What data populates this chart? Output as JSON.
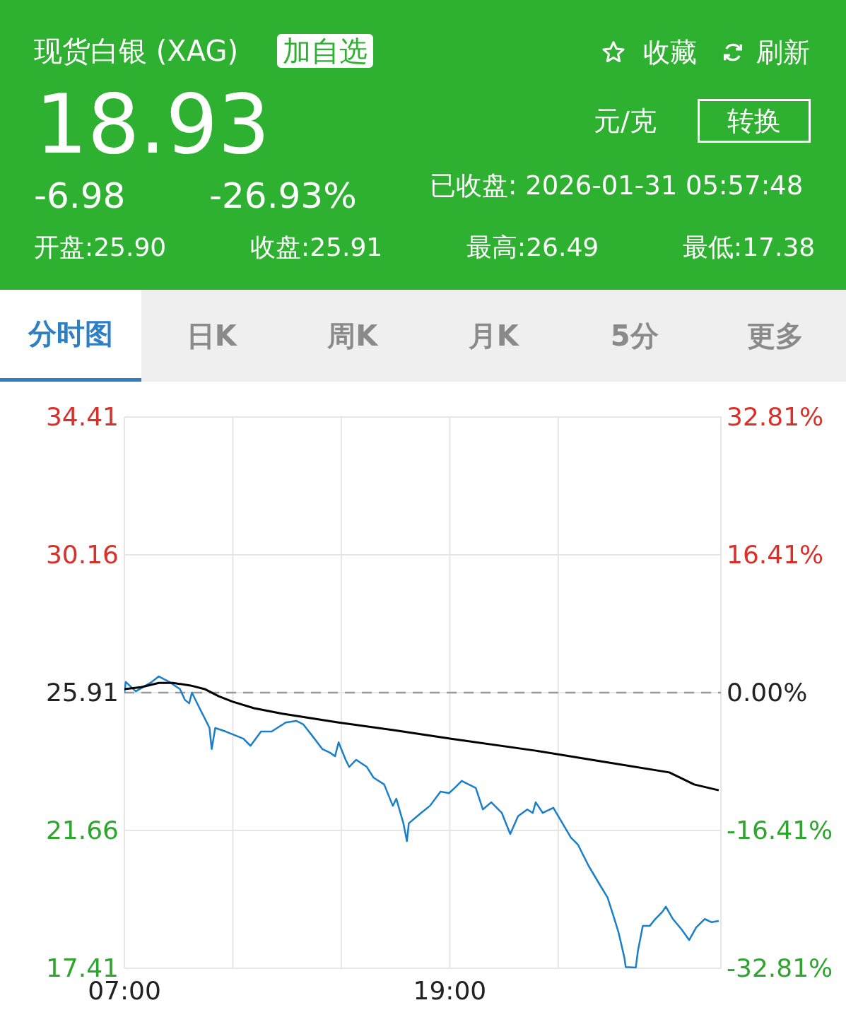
{
  "chart_data": {
    "type": "line",
    "title": "现货白银 (XAG)",
    "annotations": [
      "加自选",
      "收藏",
      "刷新",
      "18.93",
      "元/克",
      "转换",
      "-6.98",
      "-26.93%",
      "已收盘: 2026-01-31 05:57:48",
      "开盘:25.90",
      "收盘:25.91",
      "最高:26.49",
      "最低:17.38",
      "分时图",
      "日K",
      "周K",
      "月K",
      "5分",
      "更多"
    ],
    "series": [
      {
        "color": "#1a7fc8",
        "line_style": "solid",
        "x": [
          7.0,
          7.05,
          7.42,
          8.01,
          8.27,
          8.66,
          9.05,
          9.23,
          9.39,
          9.49,
          9.75,
          10.01,
          10.14,
          10.22,
          10.35,
          10.74,
          11.39,
          11.65,
          12.04,
          12.43,
          12.95,
          13.34,
          13.6,
          13.91,
          14.3,
          14.58,
          14.77,
          14.9,
          15.16,
          15.29,
          15.55,
          15.94,
          16.19,
          16.58,
          16.9,
          17.03,
          17.29,
          17.42,
          17.49,
          17.94,
          18.27,
          18.66,
          18.97,
          19.18,
          19.44,
          19.7,
          19.96,
          20.22,
          20.53,
          20.92,
          21.23,
          21.52,
          21.86,
          22.06,
          22.17,
          22.43,
          22.82,
          23.08,
          23.47,
          23.73,
          24.12,
          24.51,
          24.82,
          25.03,
          25.23,
          25.44,
          25.49,
          25.86,
          25.94,
          26.12,
          26.38,
          26.58,
          26.84,
          26.97,
          27.23,
          27.55,
          27.83,
          28.09,
          28.4,
          28.66,
          28.92
        ],
        "values": [
          25.91,
          26.24,
          25.95,
          26.24,
          26.41,
          26.24,
          26.02,
          25.69,
          25.58,
          25.91,
          25.47,
          25.04,
          24.82,
          24.17,
          24.82,
          24.71,
          24.49,
          24.27,
          24.71,
          24.71,
          24.99,
          25.04,
          24.93,
          24.6,
          24.17,
          24.06,
          23.95,
          24.38,
          23.84,
          23.62,
          23.84,
          23.62,
          23.29,
          23.08,
          22.42,
          22.64,
          21.88,
          21.33,
          21.88,
          22.2,
          22.42,
          22.86,
          22.81,
          22.97,
          23.19,
          23.08,
          22.97,
          22.31,
          22.53,
          22.2,
          21.55,
          22.1,
          22.31,
          22.2,
          22.53,
          22.2,
          22.36,
          21.99,
          21.44,
          21.22,
          20.57,
          20.02,
          19.59,
          19.04,
          18.5,
          17.74,
          17.45,
          17.43,
          17.95,
          18.72,
          18.72,
          18.93,
          19.15,
          19.31,
          18.93,
          18.61,
          18.28,
          18.67,
          18.93,
          18.83,
          18.87
        ]
      },
      {
        "color": "#000000",
        "line_style": "solid",
        "x": [
          7.0,
          7.62,
          8.27,
          8.79,
          9.44,
          9.96,
          10.48,
          11.0,
          11.78,
          12.82,
          14.9,
          16.97,
          19.05,
          22.17,
          24.51,
          27.1,
          28.01,
          28.92
        ],
        "values": [
          26.02,
          26.08,
          26.21,
          26.21,
          26.13,
          26.02,
          25.8,
          25.63,
          25.43,
          25.26,
          24.99,
          24.75,
          24.49,
          24.12,
          23.8,
          23.45,
          23.08,
          22.9
        ]
      }
    ],
    "xlim": [
      7,
      29
    ],
    "xticks": [
      {
        "value": 7,
        "label": "07:00"
      },
      {
        "value": 11,
        "label": null
      },
      {
        "value": 15,
        "label": null
      },
      {
        "value": 19,
        "label": "19:00"
      },
      {
        "value": 23,
        "label": null
      }
    ],
    "ylim": [
      17.41,
      34.41
    ],
    "yticks": [
      17.41,
      21.66,
      25.91,
      30.16,
      34.41
    ],
    "y2lim": [
      -32.81,
      32.81
    ],
    "y2ticks": [
      {
        "value": -32.81,
        "label": "-32.81%"
      },
      {
        "value": -16.41,
        "label": "-16.41%"
      },
      {
        "value": 0,
        "label": "0.00%"
      },
      {
        "value": 16.41,
        "label": "16.41%"
      },
      {
        "value": 32.81,
        "label": "32.81%"
      }
    ],
    "ref_lines": [
      {
        "axis": "y",
        "value": 25.91,
        "color": "#999999",
        "line_style": "dashed"
      }
    ],
    "grid": true,
    "marker": "none"
  }
}
